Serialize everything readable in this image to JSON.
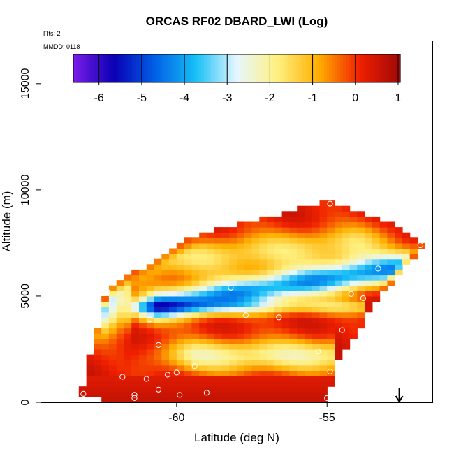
{
  "chart_data": {
    "type": "heatmap",
    "title": "ORCAS RF02 DBARD_LWI (Log)",
    "subtitle_flts": "Flts: 2",
    "subtitle_mmdd": "MMDD: 0118",
    "xlabel": "Latitude (deg N)",
    "ylabel": "Altitude (m)",
    "xlim": [
      -64.5,
      -51.5
    ],
    "ylim": [
      0,
      17000
    ],
    "x_ticks": [
      -60,
      -55
    ],
    "x_tick_labels": [
      "-60",
      "-55"
    ],
    "y_ticks": [
      0,
      5000,
      10000,
      15000
    ],
    "y_tick_labels": [
      "0",
      "5000",
      "10000",
      "15000"
    ],
    "colorbar": {
      "range": [
        -6.6,
        1.05
      ],
      "ticks": [
        -6,
        -5,
        -4,
        -3,
        -2,
        -1,
        0,
        1
      ],
      "tick_labels": [
        "-6",
        "-5",
        "-4",
        "-3",
        "-2",
        "-1",
        "0",
        "1"
      ],
      "stops": [
        "#7a1de8",
        "#0a00b4",
        "#0060e6",
        "#18c0f6",
        "#e6f6ff",
        "#fff080",
        "#ffb000",
        "#f02000",
        "#a00808"
      ]
    },
    "arrow_latitude": -52.6,
    "flight_track_markers": [
      [
        -63.1,
        400
      ],
      [
        -62.3,
        5200
      ],
      [
        -61.8,
        1200
      ],
      [
        -61.4,
        200
      ],
      [
        -61.4,
        350
      ],
      [
        -61.0,
        1100
      ],
      [
        -60.9,
        3900
      ],
      [
        -60.6,
        2700
      ],
      [
        -60.6,
        600
      ],
      [
        -60.3,
        1300
      ],
      [
        -60.0,
        1400
      ],
      [
        -59.9,
        350
      ],
      [
        -59.4,
        1700
      ],
      [
        -59.0,
        450
      ],
      [
        -58.2,
        5400
      ],
      [
        -57.7,
        4100
      ],
      [
        -56.6,
        4000
      ],
      [
        -55.3,
        2400
      ],
      [
        -55.0,
        200
      ],
      [
        -54.9,
        1450
      ],
      [
        -54.9,
        9350
      ],
      [
        -54.5,
        3400
      ],
      [
        -54.2,
        5100
      ],
      [
        -53.8,
        4900
      ],
      [
        -53.3,
        6300
      ],
      [
        -51.9,
        7400
      ]
    ]
  }
}
